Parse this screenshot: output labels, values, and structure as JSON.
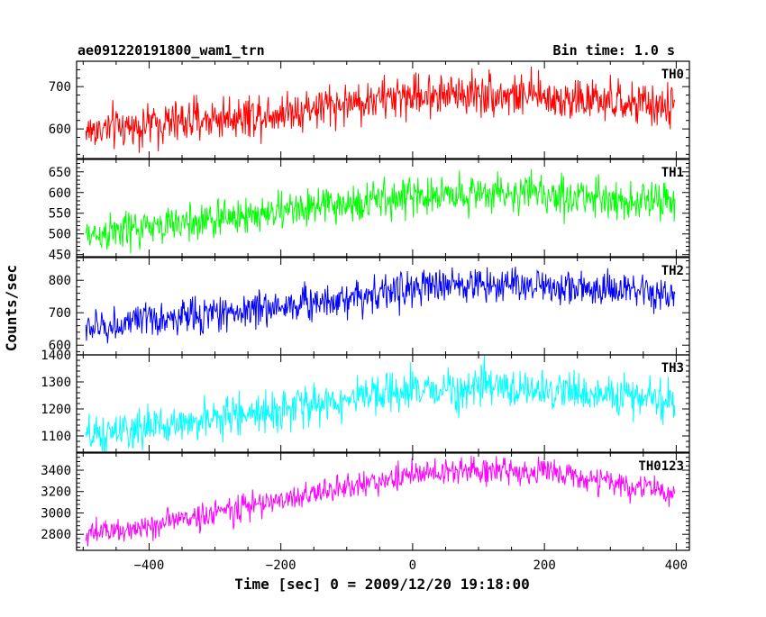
{
  "header": {
    "title": "ae091220191800_wam1_trn",
    "bin_time": "Bin time: 1.0 s"
  },
  "chart_data": {
    "type": "line",
    "xlabel": "Time [sec] 0 = 2009/12/20 19:18:00",
    "ylabel": "Counts/sec",
    "xlim": [
      -510,
      420
    ],
    "x_range": [
      -496,
      398
    ],
    "x_step": 1,
    "x_ticks": [
      -400,
      -200,
      0,
      200,
      400
    ],
    "x_tick_labels": [
      "−400",
      "−200",
      "0",
      "200",
      "400"
    ],
    "panels": [
      {
        "label": "TH0",
        "color": "#ff0000",
        "ylim": [
          530,
          760
        ],
        "yticks": [
          600,
          700
        ],
        "trend": [
          [
            -496,
            595
          ],
          [
            -400,
            610
          ],
          [
            -200,
            640
          ],
          [
            0,
            680
          ],
          [
            100,
            685
          ],
          [
            200,
            675
          ],
          [
            398,
            650
          ]
        ],
        "noise": 35
      },
      {
        "label": "TH1",
        "color": "#00ff00",
        "ylim": [
          445,
          680
        ],
        "yticks": [
          450,
          500,
          550,
          600,
          650
        ],
        "trend": [
          [
            -496,
            495
          ],
          [
            -400,
            515
          ],
          [
            -200,
            555
          ],
          [
            0,
            590
          ],
          [
            100,
            600
          ],
          [
            200,
            595
          ],
          [
            398,
            575
          ]
        ],
        "noise": 32
      },
      {
        "label": "TH2",
        "color": "#0000ff",
        "ylim": [
          570,
          870
        ],
        "yticks": [
          600,
          700,
          800
        ],
        "trend": [
          [
            -496,
            650
          ],
          [
            -400,
            675
          ],
          [
            -200,
            720
          ],
          [
            0,
            775
          ],
          [
            100,
            790
          ],
          [
            200,
            785
          ],
          [
            398,
            750
          ]
        ],
        "noise": 38
      },
      {
        "label": "TH3",
        "color": "#00ffff",
        "ylim": [
          1040,
          1400
        ],
        "yticks": [
          1100,
          1200,
          1300,
          1400
        ],
        "trend": [
          [
            -496,
            1090
          ],
          [
            -400,
            1130
          ],
          [
            -200,
            1200
          ],
          [
            0,
            1265
          ],
          [
            100,
            1280
          ],
          [
            200,
            1270
          ],
          [
            398,
            1230
          ]
        ],
        "noise": 50
      },
      {
        "label": "TH0123",
        "color": "#ff00ff",
        "ylim": [
          2650,
          3560
        ],
        "yticks": [
          2800,
          3000,
          3200,
          3400
        ],
        "trend": [
          [
            -496,
            2790
          ],
          [
            -400,
            2880
          ],
          [
            -200,
            3120
          ],
          [
            0,
            3360
          ],
          [
            100,
            3400
          ],
          [
            200,
            3390
          ],
          [
            398,
            3180
          ]
        ],
        "noise": 85
      }
    ]
  }
}
